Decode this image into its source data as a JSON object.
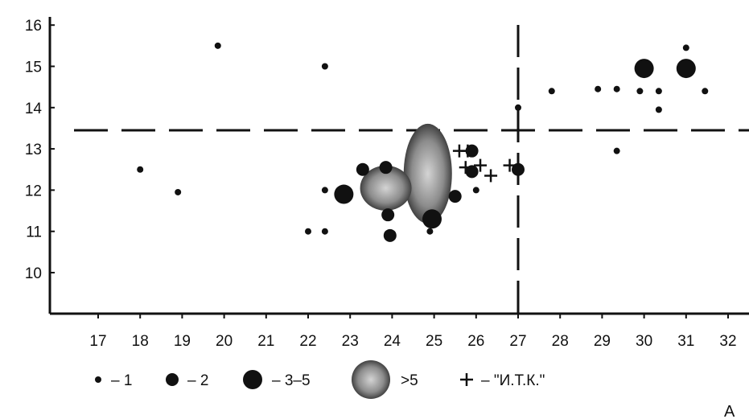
{
  "chart_data": {
    "type": "scatter",
    "title": "",
    "xlabel": "",
    "ylabel": "",
    "xlim": [
      16.2,
      32.6
    ],
    "ylim": [
      8.9,
      16.2
    ],
    "xticks": [
      17,
      18,
      19,
      20,
      21,
      22,
      23,
      24,
      25,
      26,
      27,
      28,
      29,
      30,
      31,
      32
    ],
    "yticks": [
      10,
      11,
      12,
      13,
      14,
      15,
      16
    ],
    "grid": false,
    "reference_lines": [
      {
        "orientation": "horizontal",
        "value": 13.45,
        "style": "dashed"
      },
      {
        "orientation": "vertical",
        "value": 27,
        "style": "dashed"
      }
    ],
    "legend": [
      {
        "key": "1",
        "marker": "small-dot",
        "label": "– 1"
      },
      {
        "key": "2",
        "marker": "medium-dot",
        "label": "– 2"
      },
      {
        "key": "3-5",
        "marker": "large-dot",
        "label": "– 3–5"
      },
      {
        "key": ">5",
        "marker": "blob",
        "label": ">5"
      },
      {
        "key": "itk",
        "marker": "plus",
        "label": "– \"И.Т.К.\""
      }
    ],
    "series": [
      {
        "key": "1",
        "points": [
          {
            "x": 18.0,
            "y": 12.5
          },
          {
            "x": 18.9,
            "y": 11.95
          },
          {
            "x": 19.85,
            "y": 15.5
          },
          {
            "x": 22.4,
            "y": 15.0
          },
          {
            "x": 22.4,
            "y": 12.0
          },
          {
            "x": 22.0,
            "y": 11.0
          },
          {
            "x": 22.4,
            "y": 11.0
          },
          {
            "x": 24.9,
            "y": 11.0
          },
          {
            "x": 26.0,
            "y": 12.0
          },
          {
            "x": 27.0,
            "y": 14.0
          },
          {
            "x": 27.8,
            "y": 14.4
          },
          {
            "x": 28.9,
            "y": 14.45
          },
          {
            "x": 29.35,
            "y": 14.45
          },
          {
            "x": 29.35,
            "y": 12.95
          },
          {
            "x": 29.9,
            "y": 14.4
          },
          {
            "x": 30.35,
            "y": 14.4
          },
          {
            "x": 30.35,
            "y": 13.95
          },
          {
            "x": 31.0,
            "y": 15.45
          },
          {
            "x": 31.45,
            "y": 14.4
          }
        ]
      },
      {
        "key": "2",
        "points": [
          {
            "x": 23.3,
            "y": 12.5
          },
          {
            "x": 23.85,
            "y": 12.55
          },
          {
            "x": 23.9,
            "y": 11.4
          },
          {
            "x": 23.95,
            "y": 10.9
          },
          {
            "x": 25.5,
            "y": 11.85
          },
          {
            "x": 25.9,
            "y": 12.95
          },
          {
            "x": 25.9,
            "y": 12.45
          },
          {
            "x": 27.0,
            "y": 12.5
          }
        ]
      },
      {
        "key": "3-5",
        "points": [
          {
            "x": 22.85,
            "y": 11.9
          },
          {
            "x": 24.95,
            "y": 11.3
          },
          {
            "x": 30.0,
            "y": 14.95
          },
          {
            "x": 31.0,
            "y": 14.95
          }
        ]
      },
      {
        "key": ">5",
        "points": [
          {
            "x": 24.85,
            "y": 12.4
          },
          {
            "x": 23.85,
            "y": 12.05
          }
        ]
      },
      {
        "key": "itk",
        "points": [
          {
            "x": 25.6,
            "y": 12.95
          },
          {
            "x": 25.8,
            "y": 12.95
          },
          {
            "x": 25.75,
            "y": 12.55
          },
          {
            "x": 26.1,
            "y": 12.6
          },
          {
            "x": 26.35,
            "y": 12.35
          },
          {
            "x": 26.8,
            "y": 12.6
          }
        ]
      }
    ]
  },
  "corner_label": "A"
}
